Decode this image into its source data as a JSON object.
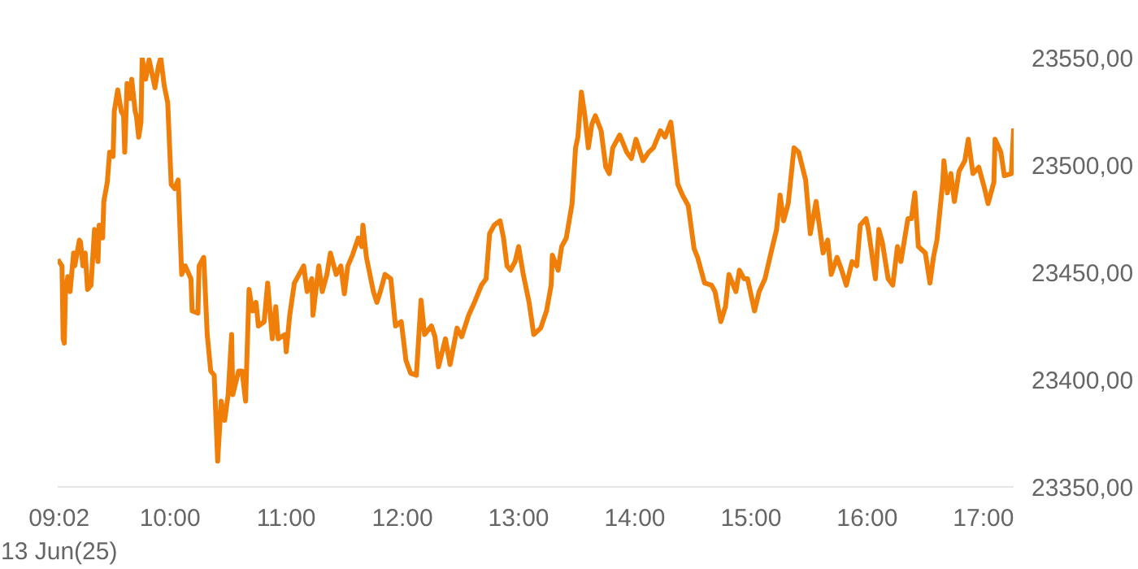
{
  "chart_data": {
    "type": "line",
    "xlim": [
      9.0333,
      17.26
    ],
    "x": [
      9.0333,
      9.07,
      9.08,
      9.09,
      9.1,
      9.12,
      9.14,
      9.17,
      9.18,
      9.22,
      9.23,
      9.25,
      9.27,
      9.29,
      9.32,
      9.35,
      9.38,
      9.39,
      9.42,
      9.43,
      9.46,
      9.48,
      9.51,
      9.52,
      9.55,
      9.58,
      9.6,
      9.61,
      9.63,
      9.66,
      9.67,
      9.7,
      9.71,
      9.73,
      9.75,
      9.76,
      9.79,
      9.82,
      9.84,
      9.87,
      9.9,
      9.92,
      9.95,
      9.98,
      10.01,
      10.04,
      10.07,
      10.1,
      10.13,
      10.18,
      10.19,
      10.24,
      10.25,
      10.29,
      10.32,
      10.35,
      10.38,
      10.41,
      10.44,
      10.47,
      10.5,
      10.53,
      10.54,
      10.59,
      10.62,
      10.65,
      10.68,
      10.71,
      10.74,
      10.76,
      10.81,
      10.84,
      10.88,
      10.91,
      10.93,
      10.99,
      11.0,
      11.03,
      11.07,
      11.15,
      11.18,
      11.22,
      11.23,
      11.28,
      11.31,
      11.35,
      11.38,
      11.43,
      11.47,
      11.5,
      11.53,
      11.57,
      11.62,
      11.65,
      11.66,
      11.69,
      11.75,
      11.78,
      11.81,
      11.85,
      11.9,
      11.94,
      11.99,
      12.03,
      12.07,
      12.12,
      12.16,
      12.19,
      12.25,
      12.28,
      12.31,
      12.37,
      12.41,
      12.47,
      12.51,
      12.57,
      12.62,
      12.68,
      12.72,
      12.75,
      12.79,
      12.84,
      12.87,
      12.9,
      12.93,
      12.97,
      13.0,
      13.04,
      13.09,
      13.13,
      13.19,
      13.24,
      13.28,
      13.29,
      13.34,
      13.37,
      13.41,
      13.46,
      13.49,
      13.51,
      13.54,
      13.57,
      13.6,
      13.63,
      13.66,
      13.71,
      13.75,
      13.78,
      13.81,
      13.87,
      13.93,
      13.97,
      14.01,
      14.07,
      14.12,
      14.16,
      14.22,
      14.26,
      14.31,
      14.37,
      14.41,
      14.46,
      14.51,
      14.54,
      14.6,
      14.66,
      14.69,
      14.74,
      14.78,
      14.81,
      14.87,
      14.9,
      14.94,
      14.97,
      15.03,
      15.07,
      15.12,
      15.18,
      15.22,
      15.25,
      15.28,
      15.32,
      15.37,
      15.41,
      15.47,
      15.51,
      15.56,
      15.62,
      15.66,
      15.69,
      15.74,
      15.78,
      15.82,
      15.87,
      15.91,
      15.94,
      15.99,
      16.01,
      16.07,
      16.1,
      16.13,
      16.18,
      16.22,
      16.26,
      16.29,
      16.35,
      16.38,
      16.41,
      16.44,
      16.5,
      16.54,
      16.57,
      16.6,
      16.65,
      16.66,
      16.69,
      16.72,
      16.75,
      16.79,
      16.84,
      16.87,
      16.91,
      16.96,
      17.01,
      17.04,
      17.09,
      17.1,
      17.15,
      17.18,
      17.24,
      17.26
    ],
    "series": [
      {
        "color": "#f07f09",
        "values": [
          23456,
          23453,
          23419,
          23417,
          23441,
          23448,
          23441,
          23459,
          23453,
          23465,
          23464,
          23453,
          23459,
          23442,
          23444,
          23470,
          23455,
          23472,
          23466,
          23483,
          23492,
          23506,
          23504,
          23525,
          23535,
          23525,
          23523,
          23506,
          23538,
          23531,
          23540,
          23525,
          23523,
          23513,
          23520,
          23550,
          23540,
          23549,
          23544,
          23536,
          23546,
          23550,
          23537,
          23529,
          23491,
          23489,
          23493,
          23449,
          23453,
          23447,
          23432,
          23431,
          23453,
          23457,
          23421,
          23404,
          23402,
          23362,
          23390,
          23381,
          23393,
          23421,
          23393,
          23404,
          23404,
          23390,
          23442,
          23432,
          23436,
          23425,
          23427,
          23445,
          23419,
          23434,
          23419,
          23421,
          23413,
          23430,
          23445,
          23453,
          23441,
          23447,
          23430,
          23453,
          23441,
          23449,
          23459,
          23449,
          23453,
          23440,
          23453,
          23458,
          23466,
          23462,
          23472,
          23457,
          23441,
          23436,
          23441,
          23449,
          23447,
          23425,
          23427,
          23409,
          23403,
          23402,
          23437,
          23421,
          23425,
          23420,
          23406,
          23419,
          23407,
          23424,
          23420,
          23430,
          23436,
          23444,
          23447,
          23468,
          23472,
          23474,
          23466,
          23453,
          23451,
          23455,
          23462,
          23449,
          23436,
          23421,
          23424,
          23432,
          23444,
          23458,
          23451,
          23462,
          23466,
          23482,
          23508,
          23513,
          23534,
          23523,
          23508,
          23519,
          23523,
          23516,
          23499,
          23496,
          23508,
          23514,
          23506,
          23503,
          23512,
          23502,
          23506,
          23508,
          23516,
          23513,
          23520,
          23491,
          23486,
          23481,
          23461,
          23457,
          23445,
          23444,
          23441,
          23427,
          23434,
          23449,
          23441,
          23451,
          23447,
          23447,
          23432,
          23441,
          23447,
          23461,
          23470,
          23486,
          23474,
          23482,
          23508,
          23506,
          23493,
          23468,
          23483,
          23459,
          23465,
          23449,
          23457,
          23451,
          23444,
          23455,
          23453,
          23472,
          23475,
          23470,
          23447,
          23470,
          23464,
          23447,
          23444,
          23462,
          23455,
          23475,
          23475,
          23487,
          23462,
          23459,
          23445,
          23457,
          23465,
          23492,
          23502,
          23487,
          23496,
          23483,
          23497,
          23502,
          23512,
          23496,
          23499,
          23489,
          23482,
          23492,
          23512,
          23506,
          23495,
          23496,
          23517
        ]
      }
    ],
    "xticks": [
      {
        "value": 9.0333,
        "label": "09:02\n13 Jun(25)"
      },
      {
        "value": 10,
        "label": "10:00"
      },
      {
        "value": 11,
        "label": "11:00"
      },
      {
        "value": 12,
        "label": "12:00"
      },
      {
        "value": 13,
        "label": "13:00"
      },
      {
        "value": 14,
        "label": "14:00"
      },
      {
        "value": 15,
        "label": "15:00"
      },
      {
        "value": 16,
        "label": "16:00"
      },
      {
        "value": 17,
        "label": "17:00"
      }
    ],
    "ylim": [
      23350,
      23550
    ],
    "yticks": [
      {
        "value": 23350,
        "label": "23350,00"
      },
      {
        "value": 23400,
        "label": "23400,00"
      },
      {
        "value": 23450,
        "label": "23450,00"
      },
      {
        "value": 23500,
        "label": "23500,00"
      },
      {
        "value": 23550,
        "label": "23550,00"
      }
    ],
    "grid": false,
    "line_style": "solid"
  }
}
